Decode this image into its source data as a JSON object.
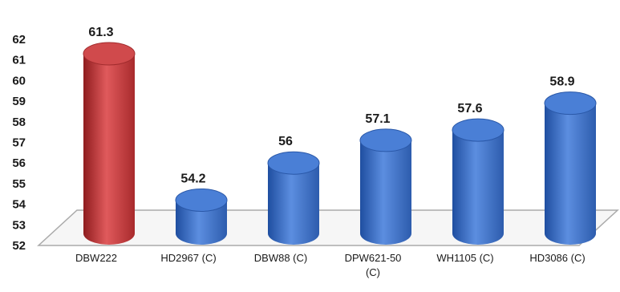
{
  "chart_data": {
    "type": "bar",
    "style": "3d-cylinder",
    "title": "",
    "xlabel": "",
    "ylabel": "",
    "categories": [
      "DBW222",
      "HD2967 (C)",
      "DBW88 (C)",
      "DPW621-50 (C)",
      "WH1105 (C)",
      "HD3086 (C)"
    ],
    "values": [
      61.3,
      54.2,
      56,
      57.1,
      57.6,
      58.9
    ],
    "data_labels": [
      "61.3",
      "54.2",
      "56",
      "57.1",
      "57.6",
      "58.9"
    ],
    "yticks": [
      "52",
      "53",
      "54",
      "55",
      "56",
      "57",
      "58",
      "59",
      "60",
      "61",
      "62"
    ],
    "ylim": [
      52,
      62
    ],
    "grid": false,
    "legend": "none",
    "colors": {
      "highlight": "#c0393b",
      "bar": "#3b6fc4",
      "floor_stroke": "#aaaaaa",
      "floor_fill": "#f6f6f6"
    },
    "highlight_index": 0
  }
}
